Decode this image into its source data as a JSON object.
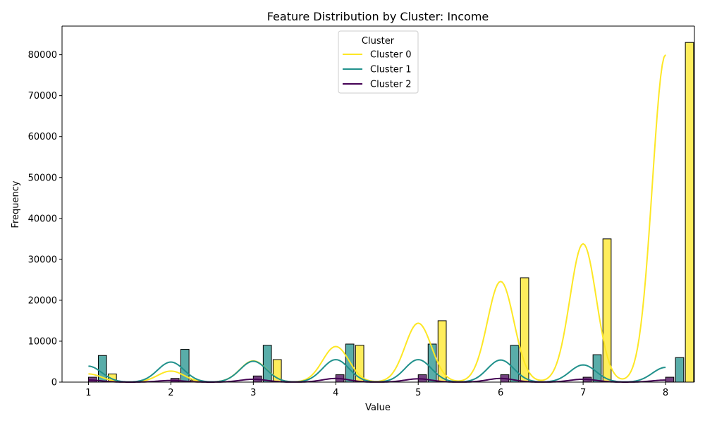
{
  "chart_data": {
    "type": "bar",
    "title": "Feature Distribution by Cluster: Income",
    "xlabel": "Value",
    "ylabel": "Frequency",
    "xlim": [
      0.68,
      8.35
    ],
    "ylim": [
      0,
      87000
    ],
    "x_ticks": [
      "1",
      "2",
      "3",
      "4",
      "5",
      "6",
      "7",
      "8"
    ],
    "y_ticks": [
      "0",
      "10000",
      "20000",
      "30000",
      "40000",
      "50000",
      "60000",
      "70000",
      "80000"
    ],
    "grid": false,
    "legend": {
      "title": "Cluster",
      "placement": "upper-center",
      "entries": [
        "Cluster 0",
        "Cluster 1",
        "Cluster 2"
      ]
    },
    "series": [
      {
        "name": "Cluster 0",
        "color": "#fde725",
        "x": [
          1,
          2,
          3,
          4,
          5,
          6,
          7,
          8
        ],
        "values": [
          2000,
          500,
          5500,
          9000,
          15000,
          25500,
          35000,
          83000
        ],
        "kde": [
          2000,
          2700,
          5200,
          8700,
          14400,
          24600,
          33800,
          80000
        ]
      },
      {
        "name": "Cluster 1",
        "color": "#21918c",
        "x": [
          1,
          2,
          3,
          4,
          5,
          6,
          7,
          8
        ],
        "values": [
          6500,
          8000,
          9000,
          9300,
          9300,
          9000,
          6700,
          6000
        ],
        "kde": [
          3900,
          4900,
          5100,
          5500,
          5500,
          5400,
          4200,
          3600
        ]
      },
      {
        "name": "Cluster 2",
        "color": "#440154",
        "x": [
          1,
          2,
          3,
          4,
          5,
          6,
          7,
          8
        ],
        "values": [
          1200,
          900,
          1500,
          1800,
          1800,
          1800,
          1200,
          1200
        ],
        "kde": [
          500,
          400,
          700,
          900,
          800,
          900,
          700,
          500
        ]
      }
    ]
  }
}
